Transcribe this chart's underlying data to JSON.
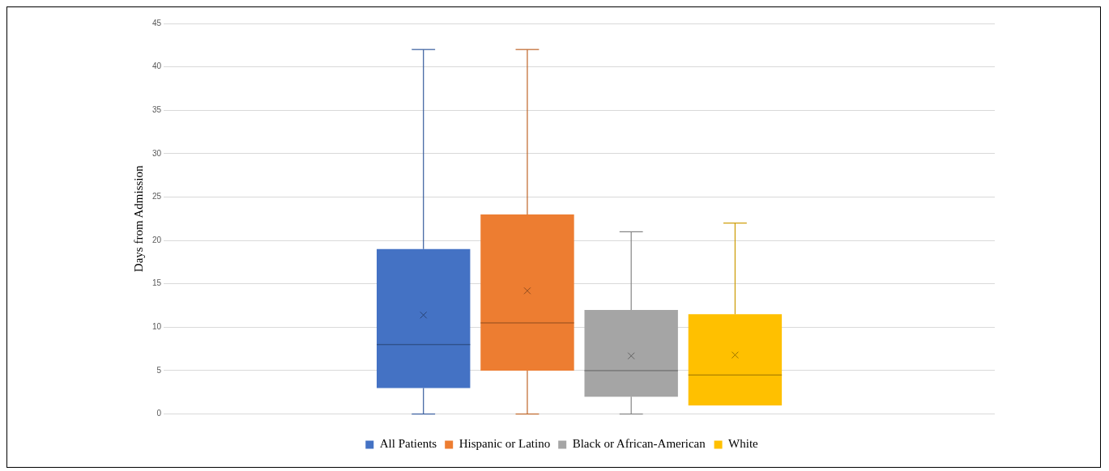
{
  "chart_data": {
    "type": "box",
    "ylabel": "Days from Admission",
    "categories": [
      null
    ],
    "series": [
      {
        "name": "All Patients",
        "color": "#4472c4",
        "boxes": [
          {
            "low": 0,
            "q1": 3,
            "median": 8,
            "q3": 19,
            "high": 42,
            "mean": 11.4
          }
        ]
      },
      {
        "name": "Hispanic or Latino",
        "color": "#ed7d31",
        "boxes": [
          {
            "low": 0,
            "q1": 5,
            "median": 10.5,
            "q3": 23,
            "high": 42,
            "mean": 14.2
          }
        ]
      },
      {
        "name": "Black or African-American",
        "color": "#a5a5a5",
        "boxes": [
          {
            "low": 0,
            "q1": 2,
            "median": 5,
            "q3": 12,
            "high": 21,
            "mean": 6.7
          }
        ]
      },
      {
        "name": "White",
        "color": "#ffc000",
        "boxes": [
          {
            "low": 1,
            "q1": 1,
            "median": 4.5,
            "q3": 11.5,
            "high": 22,
            "mean": 6.8
          }
        ]
      }
    ],
    "ylim": [
      0,
      45
    ],
    "yticks": [
      0,
      5,
      10,
      15,
      20,
      25,
      30,
      35,
      40,
      45
    ],
    "grid": "y",
    "legend": "bottom"
  }
}
